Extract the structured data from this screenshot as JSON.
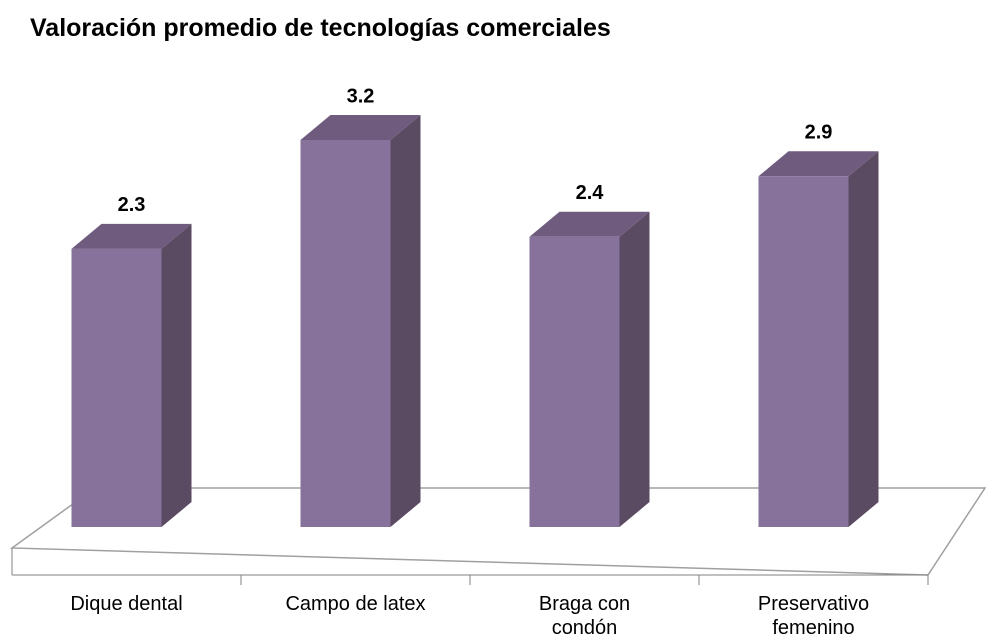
{
  "chart_data": {
    "type": "bar3d",
    "title": "Valoración promedio de tecnologías comerciales",
    "categories": [
      "Dique dental",
      "Campo de latex",
      "Braga con condón",
      "Preservativo femenino"
    ],
    "values": [
      2.3,
      3.2,
      2.4,
      2.9
    ],
    "color": "#86729a"
  }
}
